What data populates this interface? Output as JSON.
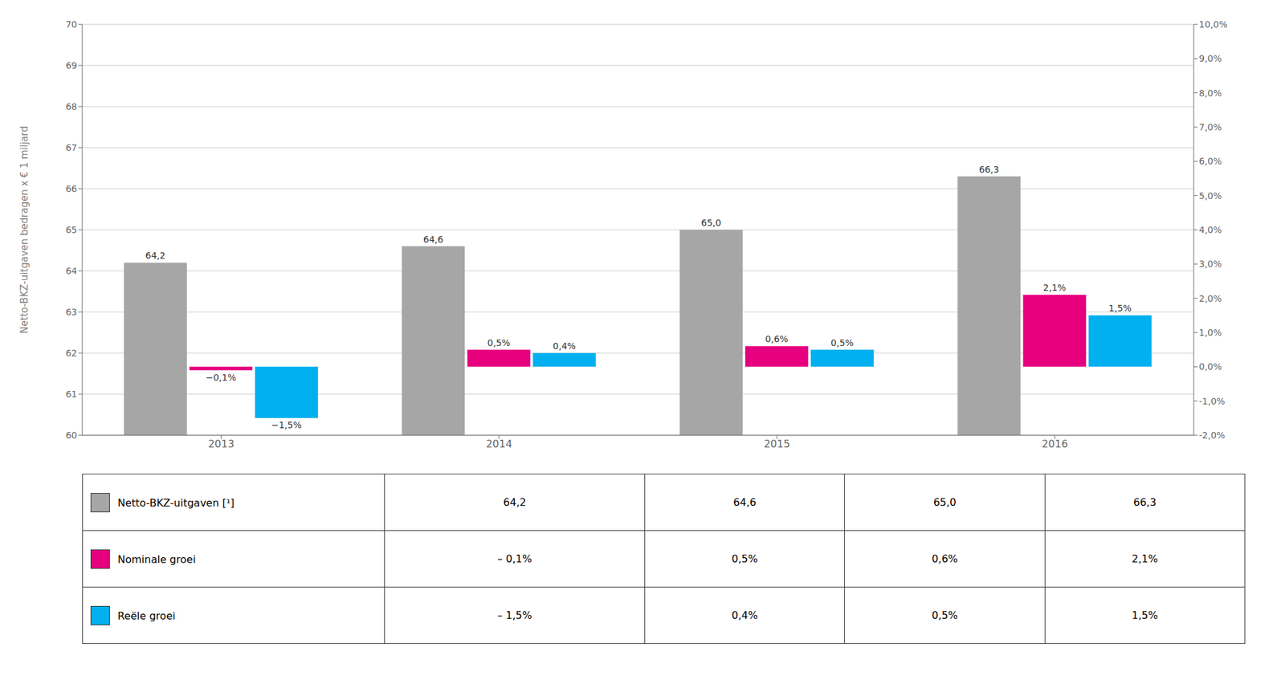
{
  "chart_data": {
    "type": "bar",
    "categories": [
      "2013",
      "2014",
      "2015",
      "2016"
    ],
    "ylabel": "Netto-BKZ-uitgaven bedragen x € 1 miljard",
    "ylim": [
      60,
      70
    ],
    "yticks": [
      60,
      61,
      62,
      63,
      64,
      65,
      66,
      67,
      68,
      69,
      70
    ],
    "y2lim": [
      -2.0,
      10.0
    ],
    "y2ticks": [
      {
        "value": -2.0,
        "label": "-2,0%"
      },
      {
        "value": -1.0,
        "label": "-1,0%"
      },
      {
        "value": 0.0,
        "label": "0,0%"
      },
      {
        "value": 1.0,
        "label": "1,0%"
      },
      {
        "value": 2.0,
        "label": "2,0%"
      },
      {
        "value": 3.0,
        "label": "3,0%"
      },
      {
        "value": 4.0,
        "label": "4,0%"
      },
      {
        "value": 5.0,
        "label": "5,0%"
      },
      {
        "value": 6.0,
        "label": "6,0%"
      },
      {
        "value": 7.0,
        "label": "7,0%"
      },
      {
        "value": 8.0,
        "label": "8,0%"
      },
      {
        "value": 9.0,
        "label": "9,0%"
      },
      {
        "value": 10.0,
        "label": "10,0%"
      }
    ],
    "grid": true,
    "data_labels": true,
    "series": [
      {
        "name": "Netto-BKZ-uitgaven [¹]",
        "color": "#a6a6a6",
        "axis": "y",
        "values": [
          64.2,
          64.6,
          65.0,
          66.3
        ],
        "value_labels": [
          "64,2",
          "64,6",
          "65,0",
          "66,3"
        ],
        "table_values": [
          "64,2",
          "64,6",
          "65,0",
          "66,3"
        ]
      },
      {
        "name": "Nominale groei",
        "color": "#e6007e",
        "axis": "y2",
        "values": [
          -0.1,
          0.5,
          0.6,
          2.1
        ],
        "value_labels": [
          "−0,1%",
          "0,5%",
          "0,6%",
          "2,1%"
        ],
        "table_values": [
          "– 0,1%",
          "0,5%",
          "0,6%",
          "2,1%"
        ]
      },
      {
        "name": "Reële groei",
        "color": "#00b0f0",
        "axis": "y2",
        "values": [
          -1.5,
          0.4,
          0.5,
          1.5
        ],
        "value_labels": [
          "−1,5%",
          "0,4%",
          "0,5%",
          "1,5%"
        ],
        "table_values": [
          "– 1,5%",
          "0,4%",
          "0,5%",
          "1,5%"
        ]
      }
    ]
  }
}
